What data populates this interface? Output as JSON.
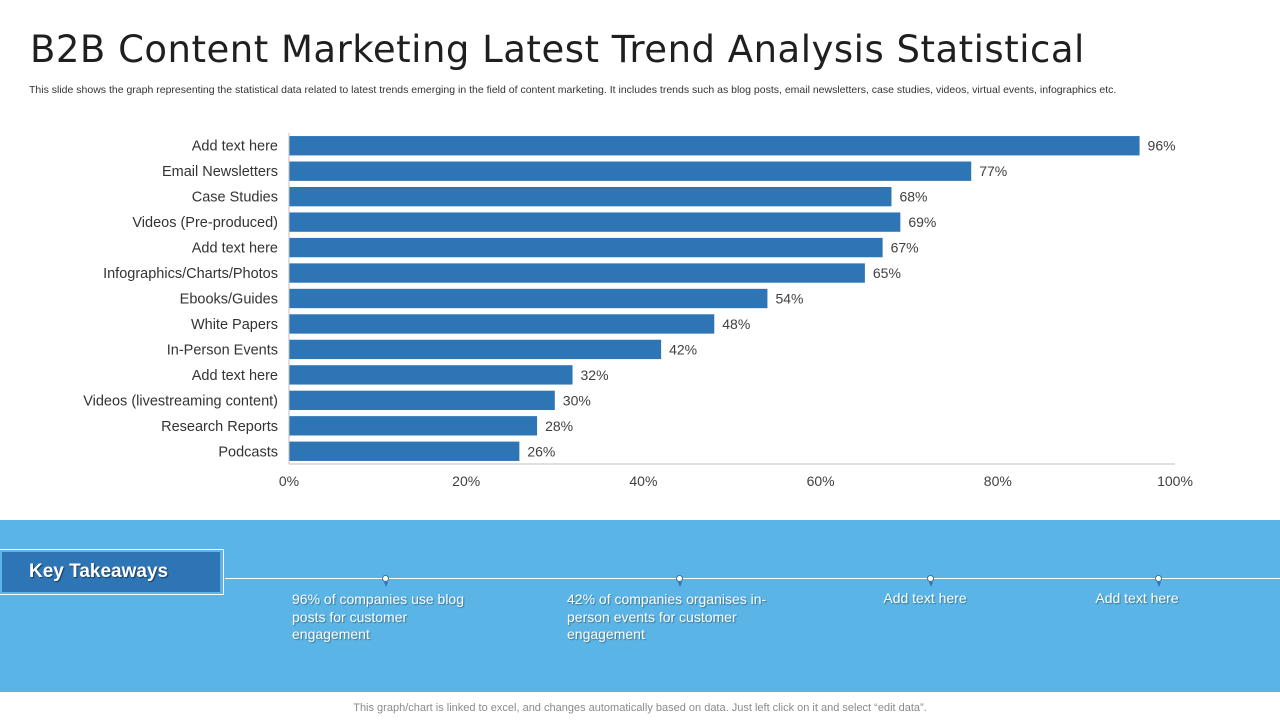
{
  "title": "B2B Content Marketing Latest Trend Analysis Statistical",
  "subtitle": "This slide shows the graph representing the statistical data related to latest trends emerging in the field of content marketing. It includes trends such as blog posts, email newsletters, case studies, videos, virtual events, infographics etc.",
  "chart_data": {
    "type": "bar",
    "orientation": "horizontal",
    "categories": [
      "Add text here",
      "Email Newsletters",
      "Case Studies",
      "Videos (Pre-produced)",
      "Add text here",
      "Infographics/Charts/Photos",
      "Ebooks/Guides",
      "White Papers",
      "In-Person Events",
      "Add text here",
      "Videos (livestreaming content)",
      "Research Reports",
      "Podcasts"
    ],
    "values": [
      96,
      77,
      68,
      69,
      67,
      65,
      54,
      48,
      42,
      32,
      30,
      28,
      26
    ],
    "data_labels": [
      "96%",
      "77%",
      "68%",
      "69%",
      "67%",
      "65%",
      "54%",
      "48%",
      "42%",
      "32%",
      "30%",
      "28%",
      "26%"
    ],
    "x_ticks": [
      "0%",
      "20%",
      "40%",
      "60%",
      "80%",
      "100%"
    ],
    "xlim": [
      0,
      100
    ],
    "grid": false,
    "bar_color": "#2e75b6"
  },
  "takeaways": {
    "heading": "Key Takeaways",
    "items": [
      "96% of companies use blog posts for customer engagement",
      "42% of companies organises in-person events for customer engagement",
      "Add text here",
      "Add text here"
    ]
  },
  "footer": "This graph/chart is linked to excel, and changes automatically based on data. Just left click on it and select “edit data”.",
  "colors": {
    "panel": "#5ab4e5",
    "accent": "#2e75b6"
  }
}
